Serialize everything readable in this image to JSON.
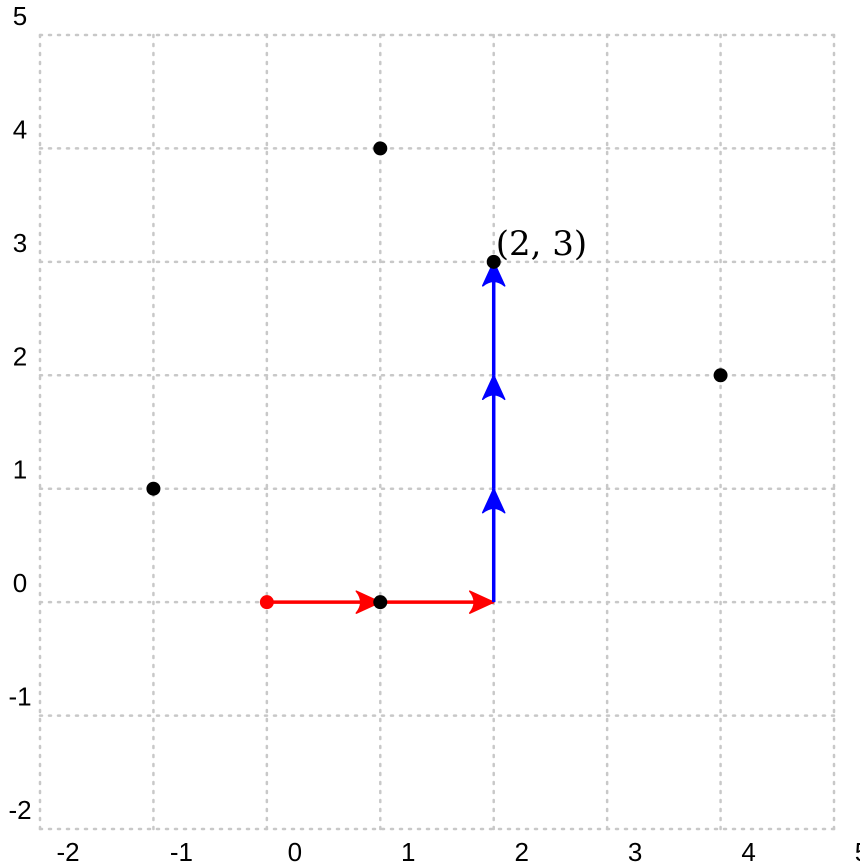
{
  "diagram": {
    "type": "grid-path",
    "x_range": [
      -2,
      5
    ],
    "y_range": [
      -2,
      5
    ],
    "x_tick_labels": [
      "-2",
      "-1",
      "0",
      "1",
      "2",
      "3",
      "4",
      "5"
    ],
    "y_tick_labels": [
      "-2",
      "-1",
      "0",
      "1",
      "2",
      "3",
      "4",
      "5"
    ],
    "grid": "dotted",
    "colors": {
      "grid": "#c8c8c8",
      "point": "#000000",
      "start_point": "#ff0000",
      "horizontal_path": "#ff0000",
      "vertical_path": "#0000ff"
    },
    "start_point": {
      "x": 0,
      "y": 0
    },
    "points": [
      {
        "x": 1,
        "y": 4
      },
      {
        "x": 2,
        "y": 3
      },
      {
        "x": 4,
        "y": 2
      },
      {
        "x": -1,
        "y": 1
      },
      {
        "x": 1,
        "y": 0
      }
    ],
    "target_label": "(2, 3)",
    "target_label_point": {
      "x": 2,
      "y": 3
    },
    "horizontal_steps": [
      {
        "from": [
          0,
          0
        ],
        "to": [
          1,
          0
        ]
      },
      {
        "from": [
          1,
          0
        ],
        "to": [
          2,
          0
        ]
      }
    ],
    "vertical_steps": [
      {
        "from": [
          2,
          0
        ],
        "to": [
          2,
          1
        ]
      },
      {
        "from": [
          2,
          1
        ],
        "to": [
          2,
          2
        ]
      },
      {
        "from": [
          2,
          2
        ],
        "to": [
          2,
          3
        ]
      }
    ]
  }
}
